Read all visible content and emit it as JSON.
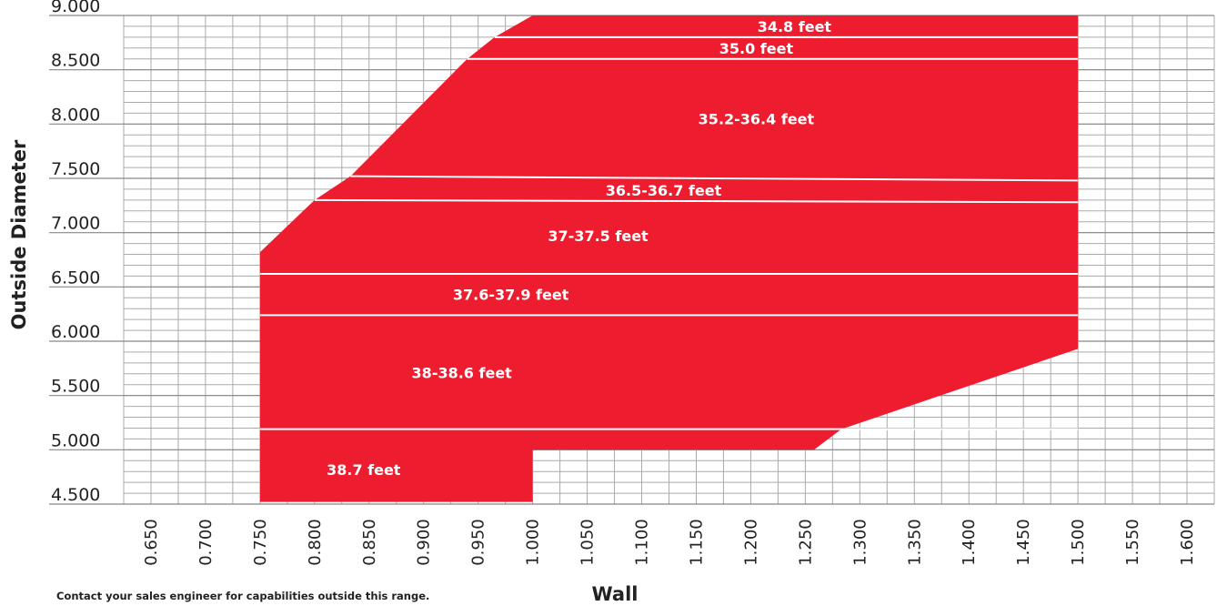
{
  "chart_data": {
    "type": "area",
    "xlabel": "Wall",
    "ylabel": "Outside Diameter",
    "xlim": [
      0.625,
      1.625
    ],
    "ylim": [
      4.5,
      9.0
    ],
    "x_ticks": [
      "0.650",
      "0.700",
      "0.750",
      "0.800",
      "0.850",
      "0.900",
      "0.950",
      "1.000",
      "1.050",
      "1.100",
      "1.150",
      "1.200",
      "1.250",
      "1.300",
      "1.350",
      "1.400",
      "1.450",
      "1.500",
      "1.550",
      "1.600"
    ],
    "y_ticks": [
      "4.500",
      "5.000",
      "5.500",
      "6.000",
      "6.500",
      "7.000",
      "7.500",
      "8.000",
      "8.500",
      "9.000"
    ],
    "grid": true,
    "fill_color": "#ED1C2E",
    "grid_color": "#aaaaaa",
    "envelope": [
      {
        "x": 1.0,
        "y": 9.0
      },
      {
        "x": 1.5,
        "y": 9.0
      },
      {
        "x": 1.5,
        "y": 5.93
      },
      {
        "x": 1.283,
        "y": 5.19
      },
      {
        "x": 1.258,
        "y": 5.0
      },
      {
        "x": 1.0,
        "y": 5.0
      },
      {
        "x": 1.0,
        "y": 4.52
      },
      {
        "x": 0.75,
        "y": 4.52
      },
      {
        "x": 0.75,
        "y": 6.82
      },
      {
        "x": 0.8,
        "y": 7.3
      },
      {
        "x": 0.833,
        "y": 7.52
      },
      {
        "x": 0.94,
        "y": 8.6
      },
      {
        "x": 0.965,
        "y": 8.8
      }
    ],
    "boundaries": [
      {
        "y_left": 8.8,
        "y_right": 8.8
      },
      {
        "y_left": 8.6,
        "y_right": 8.6
      },
      {
        "y_left": 7.52,
        "y_right": 7.48
      },
      {
        "y_left": 7.3,
        "y_right": 7.28
      },
      {
        "y_left": 6.62,
        "y_right": 6.62
      },
      {
        "y_left": 6.24,
        "y_right": 6.24
      },
      {
        "y_left": 5.19,
        "y_right": 5.19
      }
    ],
    "regions": [
      {
        "label": "34.8 feet",
        "x": 1.24,
        "y": 8.9
      },
      {
        "label": "35.0 feet",
        "x": 1.205,
        "y": 8.7
      },
      {
        "label": "35.2-36.4 feet",
        "x": 1.205,
        "y": 8.05
      },
      {
        "label": "36.5-36.7 feet",
        "x": 1.12,
        "y": 7.39
      },
      {
        "label": "37-37.5 feet",
        "x": 1.06,
        "y": 6.97
      },
      {
        "label": "37.6-37.9 feet",
        "x": 0.98,
        "y": 6.43
      },
      {
        "label": "38-38.6 feet",
        "x": 0.935,
        "y": 5.71
      },
      {
        "label": "38.7 feet",
        "x": 0.845,
        "y": 4.82
      }
    ]
  },
  "footnote": "Contact your sales engineer for capabilities outside this range."
}
